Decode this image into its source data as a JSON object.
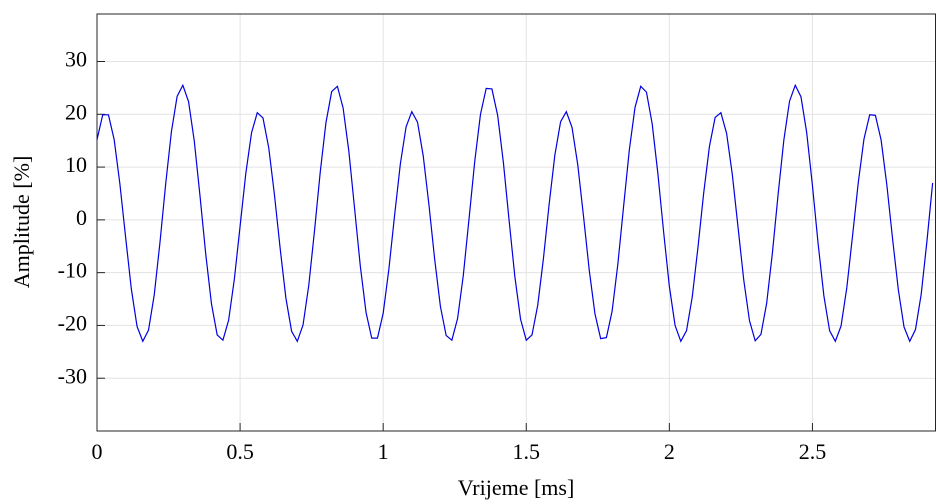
{
  "chart_data": {
    "type": "line",
    "xlabel": "Vrijeme [ms]",
    "ylabel": "Amplitude [%]",
    "color": "#0000e0",
    "xlim": [
      0,
      2.93
    ],
    "ylim": [
      -40,
      39
    ],
    "xticks": [
      0,
      0.5,
      1,
      1.5,
      2,
      2.5
    ],
    "yticks": [
      -30,
      -20,
      -10,
      0,
      10,
      20,
      30
    ],
    "grid": true,
    "x": [
      0,
      0.02,
      0.04,
      0.06,
      0.08,
      0.1,
      0.12,
      0.14,
      0.16,
      0.18,
      0.2,
      0.22,
      0.24,
      0.26,
      0.28,
      0.3,
      0.32,
      0.34,
      0.36,
      0.38,
      0.4,
      0.42,
      0.44,
      0.46,
      0.48,
      0.5,
      0.52,
      0.54,
      0.56,
      0.58,
      0.6,
      0.62,
      0.64,
      0.66,
      0.68,
      0.7,
      0.72,
      0.74,
      0.76,
      0.78,
      0.8,
      0.82,
      0.84,
      0.86,
      0.88,
      0.9,
      0.92,
      0.94,
      0.96,
      0.98,
      1,
      1.02,
      1.04,
      1.06,
      1.08,
      1.1,
      1.12,
      1.14,
      1.16,
      1.18,
      1.2,
      1.22,
      1.24,
      1.26,
      1.28,
      1.3,
      1.32,
      1.34,
      1.36,
      1.38,
      1.4,
      1.42,
      1.44,
      1.46,
      1.48,
      1.5,
      1.52,
      1.54,
      1.56,
      1.58,
      1.6,
      1.62,
      1.64,
      1.66,
      1.68,
      1.7,
      1.72,
      1.74,
      1.76,
      1.78,
      1.8,
      1.82,
      1.84,
      1.86,
      1.88,
      1.9,
      1.92,
      1.94,
      1.96,
      1.98,
      2,
      2.02,
      2.04,
      2.06,
      2.08,
      2.1,
      2.12,
      2.14,
      2.16,
      2.18,
      2.2,
      2.22,
      2.24,
      2.26,
      2.28,
      2.3,
      2.32,
      2.34,
      2.36,
      2.38,
      2.4,
      2.42,
      2.44,
      2.46,
      2.48,
      2.5,
      2.52,
      2.54,
      2.56,
      2.58,
      2.6,
      2.62,
      2.64,
      2.66,
      2.68,
      2.7,
      2.72,
      2.74,
      2.76,
      2.78,
      2.8,
      2.82,
      2.84,
      2.86,
      2.88,
      2.9,
      2.92
    ],
    "values": [
      15.2,
      19.9,
      19.9,
      15.2,
      6.8,
      -3.3,
      -13.1,
      -20.2,
      -23.0,
      -20.9,
      -14.2,
      -4.3,
      6.8,
      16.7,
      23.4,
      25.5,
      22.4,
      14.9,
      4.5,
      -6.5,
      -15.9,
      -21.8,
      -22.8,
      -19.0,
      -11.2,
      -1.2,
      8.8,
      16.5,
      20.3,
      19.3,
      13.7,
      4.8,
      -5.4,
      -14.8,
      -21.1,
      -23.0,
      -19.9,
      -12.4,
      -2.1,
      9.0,
      18.4,
      24.3,
      25.3,
      21.2,
      13.0,
      2.2,
      -8.7,
      -17.5,
      -22.4,
      -22.4,
      -17.7,
      -9.3,
      0.9,
      10.6,
      17.6,
      20.5,
      18.5,
      12.1,
      2.8,
      -7.5,
      -16.4,
      -21.9,
      -22.8,
      -18.7,
      -10.5,
      0.2,
      11.1,
      20.0,
      24.9,
      24.8,
      19.8,
      10.9,
      -0.1,
      -10.7,
      -18.8,
      -22.8,
      -21.8,
      -16.2,
      -7.3,
      3.0,
      12.3,
      18.6,
      20.5,
      17.5,
      10.4,
      0.7,
      -9.5,
      -17.8,
      -22.5,
      -22.3,
      -17.3,
      -8.4,
      2.5,
      13.2,
      21.3,
      25.3,
      24.2,
      18.2,
      8.7,
      -2.3,
      -12.6,
      -20.0,
      -23.0,
      -21.0,
      -14.6,
      -5.2,
      5.1,
      13.9,
      19.4,
      20.3,
      16.4,
      8.6,
      -1.4,
      -11.4,
      -19.1,
      -22.9,
      -21.7,
      -15.8,
      -6.3,
      4.8,
      15.1,
      22.5,
      25.5,
      23.3,
      16.5,
      6.5,
      -4.6,
      -14.4,
      -21.0,
      -23.0,
      -20.1,
      -12.9,
      -3.1,
      7.0,
      15.3,
      19.9,
      19.8,
      15.1,
      6.6,
      -3.6,
      -13.2,
      -20.3,
      -23.0,
      -20.8,
      -14.1,
      -4.1,
      7.0
    ]
  }
}
